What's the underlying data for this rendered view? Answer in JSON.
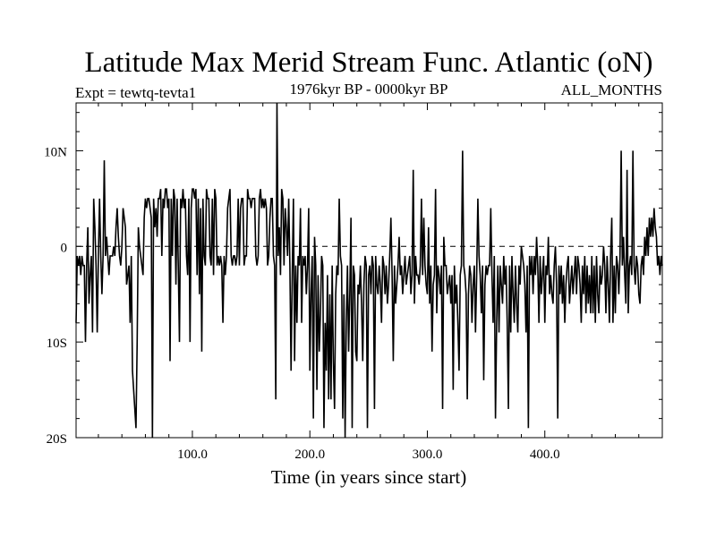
{
  "chart_data": {
    "type": "line",
    "title": "Latitude Max Merid Stream Func. Atlantic (oN)",
    "subtitle_left": "Expt = tewtq-tevta1",
    "subtitle_center": "1976kyr BP - 0000kyr BP",
    "subtitle_right": "ALL_MONTHS",
    "xlabel": "Time (in years since start)",
    "ylabel": "",
    "xlim": [
      1,
      500
    ],
    "ylim": [
      -20,
      15
    ],
    "xticks": [
      {
        "value": 100,
        "label": "100.0"
      },
      {
        "value": 200,
        "label": "200.0"
      },
      {
        "value": 300,
        "label": "300.0"
      },
      {
        "value": 400,
        "label": "400.0"
      }
    ],
    "yticks": [
      {
        "value": 10,
        "label": "10N"
      },
      {
        "value": 0,
        "label": "0"
      },
      {
        "value": -10,
        "label": "10S"
      },
      {
        "value": -20,
        "label": "20S"
      }
    ],
    "reference_line": 0,
    "grid": false,
    "series": [
      {
        "name": "Latitude of max meridional stream function",
        "x_start": 1,
        "x_step": 1,
        "values": [
          -8,
          -1,
          -2,
          -1,
          -3,
          -1,
          -2,
          -2,
          -10,
          -2,
          2,
          -6,
          -3,
          -1,
          -9,
          5,
          2,
          -2,
          -9,
          -1,
          5,
          -1,
          -5,
          -1,
          9,
          -1,
          1,
          -1,
          -3,
          -1,
          -1,
          -1,
          0,
          -1,
          2,
          4,
          1,
          -1,
          -2,
          0,
          4,
          3,
          2,
          -4,
          -3,
          -2,
          -8,
          -1,
          -13,
          -15,
          -17,
          -19,
          -10,
          2,
          0,
          -1,
          -2,
          -3,
          3,
          5,
          4,
          5,
          5,
          4,
          3,
          -20,
          5,
          2,
          4,
          1,
          5,
          5,
          6,
          -1,
          5,
          4,
          6,
          6,
          4,
          5,
          -12,
          5,
          -1,
          6,
          5,
          -4,
          5,
          -2,
          -10,
          5,
          4,
          6,
          4,
          5,
          -1,
          -3,
          5,
          -10,
          4,
          6,
          6,
          5,
          6,
          -3,
          5,
          -5,
          4,
          -11,
          5,
          -1,
          -2,
          6,
          5,
          5,
          -1,
          -2,
          5,
          -3,
          6,
          5,
          -2,
          -1,
          -2,
          -1,
          -2,
          -8,
          -1,
          -3,
          -1,
          4,
          5,
          6,
          -1,
          -2,
          -1,
          -1,
          -2,
          -1,
          5,
          -2,
          4,
          5,
          5,
          -2,
          -1,
          -1,
          6,
          5,
          5,
          4,
          5,
          5,
          5,
          -1,
          -2,
          -1,
          5,
          6,
          4,
          5,
          4,
          5,
          4,
          -2,
          -1,
          3,
          5,
          5,
          -1,
          -2,
          -16,
          15,
          -1,
          2,
          -3,
          6,
          5,
          -2,
          4,
          2,
          -1,
          5,
          -2,
          -13,
          -3,
          5,
          -12,
          -2,
          -8,
          -1,
          -2,
          4,
          -8,
          -1,
          -2,
          -1,
          -5,
          -2,
          4,
          -13,
          -5,
          -1,
          -18,
          1,
          -2,
          -15,
          -3,
          -11,
          -7,
          -1,
          -2,
          -19,
          -8,
          -13,
          -3,
          -16,
          -5,
          -16,
          -2,
          -12,
          -17,
          -5,
          -2,
          -3,
          5,
          -1,
          -2,
          -18,
          -5,
          -20,
          -8,
          -2,
          -11,
          -5,
          3,
          -19,
          -2,
          -3,
          -11,
          -12,
          -4,
          -5,
          -2,
          -6,
          -12,
          -4,
          -1,
          -2,
          -19,
          -3,
          -2,
          -5,
          -1,
          -2,
          -17,
          -1,
          -4,
          -5,
          -2,
          -4,
          -8,
          -1,
          -2,
          -5,
          -2,
          -6,
          -4,
          -1,
          3,
          -3,
          -12,
          -2,
          -6,
          -4,
          -2,
          1,
          -3,
          -2,
          -5,
          -3,
          -1,
          -4,
          -3,
          -2,
          -1,
          -5,
          -3,
          8,
          -6,
          -1,
          -3,
          -3,
          -4,
          -2,
          5,
          -3,
          3,
          -2,
          -4,
          -5,
          2,
          -6,
          -2,
          -11,
          -4,
          -3,
          6,
          -7,
          -2,
          -3,
          -5,
          -2,
          -17,
          1,
          -2,
          -2,
          -5,
          -4,
          -3,
          -6,
          -3,
          -15,
          -2,
          -6,
          -4,
          -8,
          -13,
          -3,
          -2,
          10,
          -2,
          -3,
          -5,
          -16,
          -5,
          -2,
          -3,
          -8,
          -4,
          -2,
          -9,
          -3,
          5,
          -1,
          -3,
          -7,
          -2,
          -14,
          -4,
          -2,
          -3,
          -2,
          -2,
          4,
          -3,
          -8,
          -1,
          -18,
          -8,
          -2,
          -9,
          -2,
          -4,
          -6,
          -1,
          -4,
          -2,
          -8,
          -17,
          -2,
          -9,
          -1,
          -5,
          -8,
          -2,
          -6,
          -9,
          -2,
          -4,
          0,
          -1,
          -2,
          -4,
          -9,
          -2,
          -19,
          -1,
          -3,
          -1,
          -5,
          -1,
          -3,
          1,
          -2,
          -8,
          -1,
          -5,
          -3,
          -1,
          -8,
          -2,
          -3,
          1,
          -5,
          -3,
          -5,
          -6,
          -2,
          0,
          -4,
          -18,
          -2,
          -5,
          -2,
          -6,
          -3,
          -8,
          -4,
          -2,
          -1,
          -6,
          -4,
          -2,
          -5,
          -3,
          -1,
          -5,
          -1,
          -2,
          -4,
          -8,
          -2,
          -5,
          -1,
          -7,
          -2,
          -6,
          -3,
          -7,
          -1,
          -7,
          -2,
          -8,
          -1,
          -5,
          -7,
          -2,
          -4,
          -3,
          0,
          -2,
          -7,
          -1,
          -4,
          -8,
          -1,
          3,
          -8,
          -2,
          -7,
          -1,
          -2,
          -5,
          -1,
          10,
          -2,
          1,
          -3,
          -6,
          8,
          -7,
          -2,
          -1,
          -3,
          10,
          -2,
          -4,
          -1,
          -2,
          -5,
          -6,
          -2,
          -1,
          -3,
          1,
          -1,
          2,
          -1,
          3,
          1,
          3,
          1,
          4,
          2,
          1,
          -2,
          -1,
          -3,
          -1,
          -2,
          -1,
          -2,
          -8,
          -1,
          -4,
          -6,
          -1,
          -3,
          -7,
          -1,
          -2,
          1,
          3,
          -1,
          -2,
          -5,
          -3,
          -2,
          -2,
          -4,
          -2,
          -1,
          -3,
          -2,
          -3,
          -1,
          -2,
          -3,
          -2,
          -6,
          -10,
          -3,
          -18,
          -9,
          -6,
          -2,
          -1,
          -3,
          -6,
          -4,
          -1,
          2,
          -1,
          -7,
          -1,
          -3,
          -3,
          -5,
          -2,
          -8
        ]
      }
    ]
  }
}
